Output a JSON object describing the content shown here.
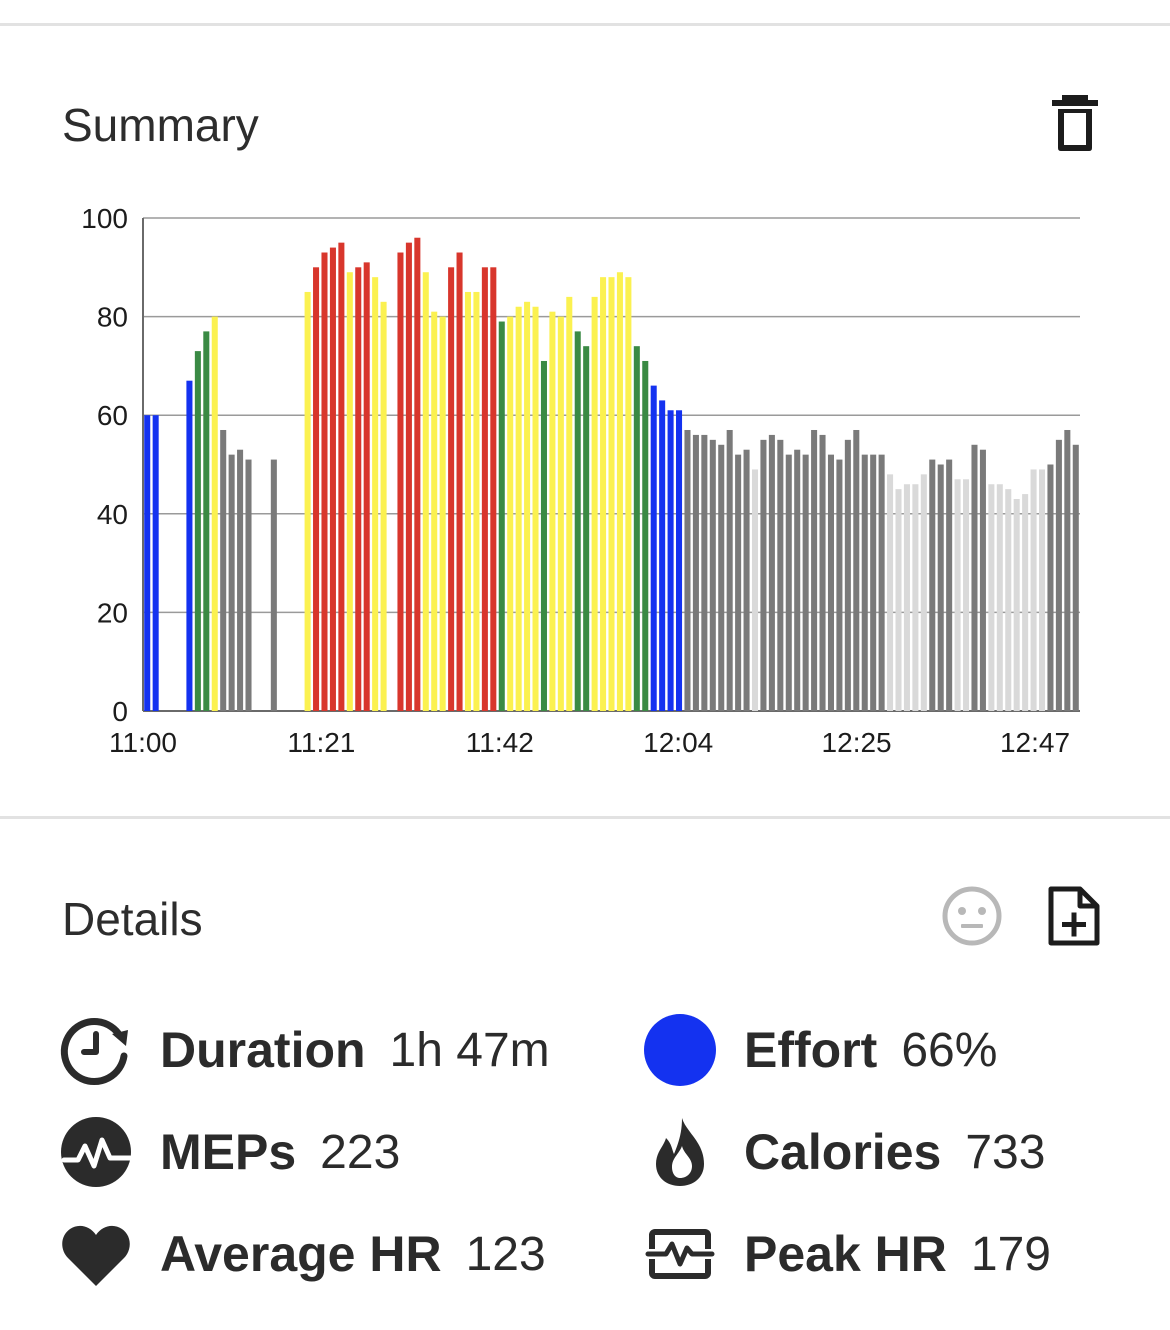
{
  "summary": {
    "title": "Summary",
    "delete_icon": "trash-icon"
  },
  "details": {
    "title": "Details",
    "mood_icon": "neutral-face-icon",
    "add_note_icon": "add-document-icon",
    "stats": [
      {
        "id": "duration",
        "icon": "clock-refresh-icon",
        "label": "Duration",
        "value": "1h 47m"
      },
      {
        "id": "effort",
        "icon": "effort-dot-icon",
        "label": "Effort",
        "value": "66%",
        "color": "#1432f0"
      },
      {
        "id": "meps",
        "icon": "pulse-circle-icon",
        "label": "MEPs",
        "value": "223"
      },
      {
        "id": "calories",
        "icon": "flame-icon",
        "label": "Calories",
        "value": "733"
      },
      {
        "id": "avg-hr",
        "icon": "heart-icon",
        "label": "Average HR",
        "value": "123"
      },
      {
        "id": "peak-hr",
        "icon": "heart-rate-monitor-icon",
        "label": "Peak HR",
        "value": "179"
      }
    ]
  },
  "chart_data": {
    "type": "bar",
    "title": "",
    "xlabel": "",
    "ylabel": "",
    "ylim": [
      0,
      100
    ],
    "y_ticks": [
      "0",
      "20",
      "40",
      "60",
      "80",
      "100"
    ],
    "x_ticks": [
      "11:00",
      "11:21",
      "11:42",
      "12:04",
      "12:25",
      "12:47"
    ],
    "grid": true,
    "zone_colors": {
      "blue": "#1432f0",
      "green": "#3a8a44",
      "yellow": "#fbf150",
      "red": "#d8362c",
      "gray": "#7a7a7a",
      "lightgray": "#d9d9d9"
    },
    "values": [
      60,
      60,
      0,
      0,
      0,
      67,
      73,
      77,
      80,
      57,
      52,
      53,
      51,
      0,
      0,
      51,
      0,
      0,
      0,
      85,
      90,
      93,
      94,
      95,
      89,
      90,
      91,
      88,
      83,
      0,
      93,
      95,
      96,
      89,
      81,
      80,
      90,
      93,
      85,
      85,
      90,
      90,
      79,
      80,
      82,
      83,
      82,
      71,
      81,
      80,
      84,
      77,
      74,
      84,
      88,
      88,
      89,
      88,
      74,
      71,
      66,
      63,
      61,
      61,
      57,
      56,
      56,
      55,
      54,
      57,
      52,
      53,
      49,
      55,
      56,
      55,
      52,
      53,
      52,
      57,
      56,
      52,
      51,
      55,
      57,
      52,
      52,
      52,
      48,
      45,
      46,
      46,
      48,
      51,
      50,
      51,
      47,
      47,
      54,
      53,
      46,
      46,
      45,
      43,
      44,
      49,
      49,
      50,
      55,
      57,
      54
    ],
    "zones": [
      "blue",
      "blue",
      "none",
      "none",
      "none",
      "blue",
      "green",
      "green",
      "yellow",
      "gray",
      "gray",
      "gray",
      "gray",
      "none",
      "none",
      "gray",
      "none",
      "none",
      "none",
      "yellow",
      "red",
      "red",
      "red",
      "red",
      "yellow",
      "red",
      "red",
      "yellow",
      "yellow",
      "none",
      "red",
      "red",
      "red",
      "yellow",
      "yellow",
      "yellow",
      "red",
      "red",
      "yellow",
      "yellow",
      "red",
      "red",
      "green",
      "yellow",
      "yellow",
      "yellow",
      "yellow",
      "green",
      "yellow",
      "yellow",
      "yellow",
      "green",
      "green",
      "yellow",
      "yellow",
      "yellow",
      "yellow",
      "yellow",
      "green",
      "green",
      "blue",
      "blue",
      "blue",
      "blue",
      "gray",
      "gray",
      "gray",
      "gray",
      "gray",
      "gray",
      "gray",
      "gray",
      "lightgray",
      "gray",
      "gray",
      "gray",
      "gray",
      "gray",
      "gray",
      "gray",
      "gray",
      "gray",
      "gray",
      "gray",
      "gray",
      "gray",
      "gray",
      "gray",
      "lightgray",
      "lightgray",
      "lightgray",
      "lightgray",
      "lightgray",
      "gray",
      "gray",
      "gray",
      "lightgray",
      "lightgray",
      "gray",
      "gray",
      "lightgray",
      "lightgray",
      "lightgray",
      "lightgray",
      "lightgray",
      "lightgray",
      "lightgray",
      "gray",
      "gray",
      "gray",
      "gray"
    ]
  }
}
